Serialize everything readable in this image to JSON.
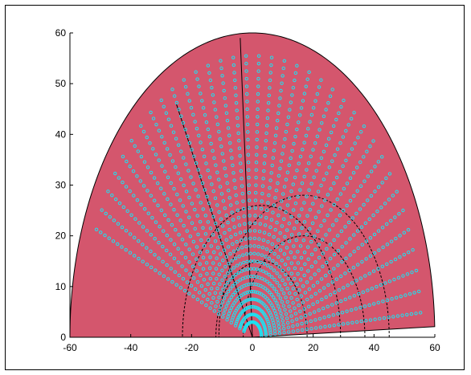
{
  "chart_data": {
    "type": "scatter",
    "title": "",
    "xlabel": "",
    "ylabel": "",
    "xlim": [
      -60,
      60
    ],
    "ylim": [
      0,
      60
    ],
    "x_ticks": [
      "-60",
      "-40",
      "-20",
      "0",
      "20",
      "40",
      "60"
    ],
    "y_ticks": [
      "0",
      "10",
      "20",
      "30",
      "40",
      "50",
      "60"
    ],
    "grid": false,
    "legend": "none",
    "coverage_region": {
      "description": "filled elliptical sector",
      "center": [
        0,
        0
      ],
      "semi_axis_x": 60,
      "semi_axis_y": 60,
      "angle_start_deg": 2,
      "angle_end_deg": 180
    },
    "rays": {
      "count": 36,
      "angle_start_deg": 5,
      "angle_end_deg": 157.5,
      "r_start": 3,
      "r_end": 56,
      "point_spacing": 1.5
    },
    "dashed_circles": [
      {
        "center": [
          3,
          0
        ],
        "radius": 15
      },
      {
        "center": [
          3,
          0
        ],
        "radius": 26
      },
      {
        "center": [
          17,
          0
        ],
        "radius": 20
      },
      {
        "center": [
          17,
          0
        ],
        "radius": 28
      }
    ],
    "boundary_lines": [
      {
        "from": [
          0,
          0
        ],
        "to": [
          -25,
          46
        ]
      },
      {
        "from": [
          0,
          0
        ],
        "to": [
          -4,
          59
        ]
      }
    ],
    "colors": {
      "region": "#d4566d",
      "points": "#1ee0f0",
      "lines": "#000000"
    }
  }
}
